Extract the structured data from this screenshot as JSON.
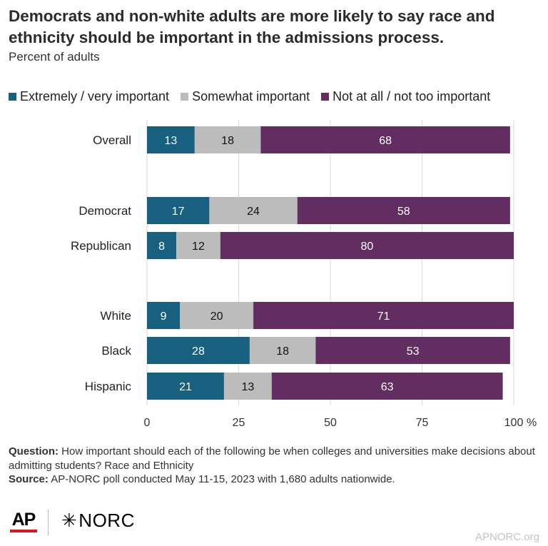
{
  "title": "Democrats and non-white adults are more likely to say race and ethnicity should be important in the admissions process.",
  "subtitle": "Percent of adults",
  "legend": [
    {
      "label": "Extremely / very important",
      "color": "#17607f"
    },
    {
      "label": "Somewhat important",
      "color": "#bcbcbc"
    },
    {
      "label": "Not at all / not too important",
      "color": "#622e61"
    }
  ],
  "chart_data": {
    "type": "bar",
    "orientation": "horizontal",
    "stacked": true,
    "categories": [
      "Overall",
      "Democrat",
      "Republican",
      "White",
      "Black",
      "Hispanic"
    ],
    "groups": [
      [
        "Overall"
      ],
      [
        "Democrat",
        "Republican"
      ],
      [
        "White",
        "Black",
        "Hispanic"
      ]
    ],
    "series": [
      {
        "name": "Extremely / very important",
        "color": "#17607f",
        "label_color": "#ffffff",
        "values": [
          13,
          17,
          8,
          9,
          28,
          21
        ]
      },
      {
        "name": "Somewhat important",
        "color": "#bcbcbc",
        "label_color": "#111111",
        "values": [
          18,
          24,
          12,
          20,
          18,
          13
        ]
      },
      {
        "name": "Not at all / not too important",
        "color": "#622e61",
        "label_color": "#ffffff",
        "values": [
          68,
          58,
          80,
          71,
          53,
          63
        ]
      }
    ],
    "xlim": [
      0,
      100
    ],
    "xticks": [
      0,
      25,
      50,
      75,
      100
    ],
    "xtick_labels": [
      "0",
      "25",
      "50",
      "75",
      "100"
    ],
    "x_unit_label": "%",
    "grid": true,
    "legend_position": "top"
  },
  "notes": {
    "question_label": "Question:",
    "question_text": "How important should each of the following be when colleges and universities make decisions about admitting students? Race and Ethnicity",
    "source_label": "Source:",
    "source_text": "AP-NORC poll conducted May 11-15, 2023 with 1,680 adults nationwide."
  },
  "footer": {
    "ap_logo": "AP",
    "norc_logo": "NORC",
    "site": "APNORC.org"
  }
}
